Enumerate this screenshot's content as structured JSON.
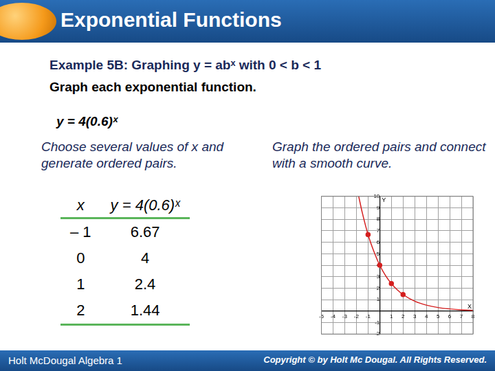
{
  "slide": {
    "title": "Exponential Functions",
    "example": "Example 5B: Graphing y = abˣ with  0 < b < 1",
    "instruction": "Graph each exponential function.",
    "function": "y = 4(0.6)ˣ",
    "left_note": "Choose several values of x and generate ordered pairs.",
    "right_note": "Graph the ordered pairs and connect with a smooth curve.",
    "table": {
      "header": [
        "x",
        "y = 4(0.6)ˣ"
      ],
      "rows": [
        [
          "– 1",
          "6.67"
        ],
        [
          "0",
          "4"
        ],
        [
          "1",
          "2.4"
        ],
        [
          "2",
          "1.44"
        ]
      ]
    },
    "footer_left": "Holt McDougal Algebra 1",
    "footer_right": "Copyright © by Holt Mc Dougal. All Rights Reserved."
  },
  "chart_data": {
    "type": "line",
    "x_label": "X",
    "y_label": "Y",
    "x": [
      -1.8,
      -1.5,
      -1,
      -0.5,
      0,
      0.5,
      1,
      1.5,
      2,
      3,
      4,
      5,
      6,
      7,
      8
    ],
    "series": [
      {
        "color": "#d42020",
        "marker": "none",
        "line_style": "solid",
        "values": [
          10.0,
          8.6,
          6.67,
          5.2,
          4,
          3.1,
          2.4,
          1.86,
          1.44,
          0.86,
          0.52,
          0.31,
          0.19,
          0.11,
          0.07
        ]
      },
      {
        "color": "#d42020",
        "marker": "circle",
        "line_style": "none",
        "values": [
          null,
          null,
          6.67,
          null,
          4,
          null,
          2.4,
          null,
          1.44,
          null,
          null,
          null,
          null,
          null,
          null
        ]
      }
    ],
    "xlim": [
      -5,
      8
    ],
    "xticks": [
      -5,
      -4,
      -3,
      -2,
      -1,
      1,
      2,
      3,
      4,
      5,
      6,
      7,
      8
    ],
    "ylim": [
      -2,
      10
    ],
    "yticks": [
      -2,
      -1,
      1,
      2,
      3,
      4,
      5,
      6,
      7,
      8,
      9,
      10
    ],
    "grid": true
  }
}
